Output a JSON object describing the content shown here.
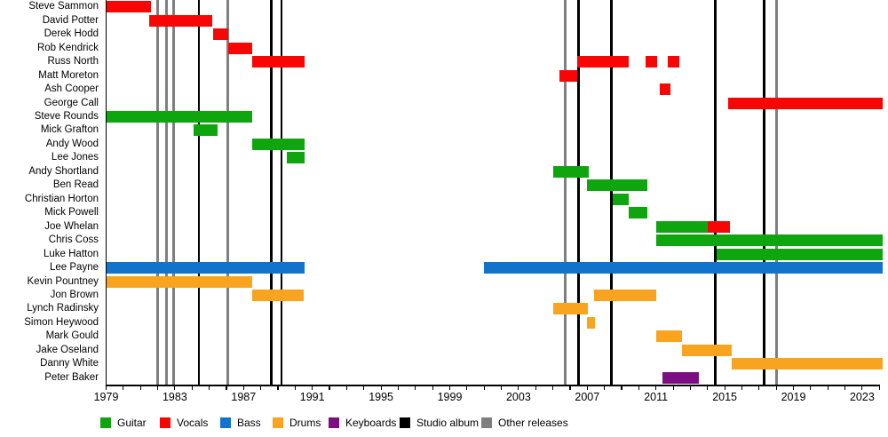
{
  "chart_data": {
    "type": "timeline",
    "description": "Band members timeline (Gantt-style), roles by color, vertical lines for releases",
    "x_axis": {
      "min": 1979,
      "max": 2024,
      "tick_step": 1,
      "labeled_years": [
        1979,
        1983,
        1987,
        1991,
        1995,
        1999,
        2003,
        2007,
        2011,
        2015,
        2019,
        2023
      ]
    },
    "colors": {
      "guitar": "#0fa50f",
      "vocals": "#f80606",
      "bass": "#1273cc",
      "drums": "#f9a41f",
      "keyboards": "#7b0f82",
      "studio_album": "#000000",
      "other_release": "#7f7f7f"
    },
    "legend": [
      {
        "key": "guitar",
        "label": "Guitar"
      },
      {
        "key": "vocals",
        "label": "Vocals"
      },
      {
        "key": "bass",
        "label": "Bass"
      },
      {
        "key": "drums",
        "label": "Drums"
      },
      {
        "key": "keyboards",
        "label": "Keyboards"
      },
      {
        "key": "studio_album",
        "label": "Studio album"
      },
      {
        "key": "other_release",
        "label": "Other releases"
      }
    ],
    "events": {
      "studio_album": [
        1984.4,
        1988.6,
        1989.2,
        2006.5,
        2008.4,
        2014.45,
        2017.3
      ],
      "other_release": [
        1982.0,
        1982.5,
        1982.9,
        1986.1,
        2005.7,
        2018.0
      ]
    },
    "rows": [
      {
        "name": "Steve Sammon",
        "segments": [
          {
            "role": "vocals",
            "start": 1979.0,
            "end": 1981.6
          }
        ]
      },
      {
        "name": "David Potter",
        "segments": [
          {
            "role": "vocals",
            "start": 1981.5,
            "end": 1985.2
          }
        ]
      },
      {
        "name": "Derek Hodd",
        "segments": [
          {
            "role": "vocals",
            "start": 1985.2,
            "end": 1986.1
          }
        ]
      },
      {
        "name": "Rob Kendrick",
        "segments": [
          {
            "role": "vocals",
            "start": 1986.1,
            "end": 1987.5
          }
        ]
      },
      {
        "name": "Russ North",
        "segments": [
          {
            "role": "vocals",
            "start": 1987.5,
            "end": 1990.55
          },
          {
            "role": "vocals",
            "start": 2006.4,
            "end": 2009.4
          },
          {
            "role": "vocals",
            "start": 2010.4,
            "end": 2011.05
          },
          {
            "role": "vocals",
            "start": 2011.7,
            "end": 2012.35
          }
        ]
      },
      {
        "name": "Matt Moreton",
        "segments": [
          {
            "role": "vocals",
            "start": 2005.4,
            "end": 2006.4
          }
        ]
      },
      {
        "name": "Ash Cooper",
        "segments": [
          {
            "role": "vocals",
            "start": 2011.2,
            "end": 2011.85
          }
        ]
      },
      {
        "name": "George Call",
        "segments": [
          {
            "role": "vocals",
            "start": 2015.2,
            "end": 2024.2
          }
        ]
      },
      {
        "name": "Steve Rounds",
        "segments": [
          {
            "role": "guitar",
            "start": 1979.0,
            "end": 1987.5
          }
        ]
      },
      {
        "name": "Mick Grafton",
        "segments": [
          {
            "role": "guitar",
            "start": 1984.1,
            "end": 1985.5
          }
        ]
      },
      {
        "name": "Andy Wood",
        "segments": [
          {
            "role": "guitar",
            "start": 1987.5,
            "end": 1990.55
          }
        ]
      },
      {
        "name": "Lee Jones",
        "segments": [
          {
            "role": "guitar",
            "start": 1989.5,
            "end": 1990.55
          }
        ]
      },
      {
        "name": "Andy Shortland",
        "segments": [
          {
            "role": "guitar",
            "start": 2005.0,
            "end": 2007.1
          }
        ]
      },
      {
        "name": "Ben Read",
        "segments": [
          {
            "role": "guitar",
            "start": 2007.0,
            "end": 2010.5
          }
        ]
      },
      {
        "name": "Christian Horton",
        "segments": [
          {
            "role": "guitar",
            "start": 2008.5,
            "end": 2009.4
          }
        ]
      },
      {
        "name": "Mick Powell",
        "segments": [
          {
            "role": "guitar",
            "start": 2009.4,
            "end": 2010.5
          }
        ]
      },
      {
        "name": "Joe Whelan",
        "segments": [
          {
            "role": "guitar",
            "start": 2011.0,
            "end": 2014.0
          },
          {
            "role": "vocals",
            "start": 2014.0,
            "end": 2015.3
          }
        ]
      },
      {
        "name": "Chris Coss",
        "segments": [
          {
            "role": "guitar",
            "start": 2011.0,
            "end": 2024.2
          }
        ]
      },
      {
        "name": "Luke Hatton",
        "segments": [
          {
            "role": "guitar",
            "start": 2014.55,
            "end": 2024.2
          }
        ]
      },
      {
        "name": "Lee Payne",
        "segments": [
          {
            "role": "bass",
            "start": 1979.0,
            "end": 1990.55
          },
          {
            "role": "bass",
            "start": 2001.0,
            "end": 2024.2
          }
        ]
      },
      {
        "name": "Kevin Pountney",
        "segments": [
          {
            "role": "drums",
            "start": 1979.0,
            "end": 1987.5
          }
        ]
      },
      {
        "name": "Jon Brown",
        "segments": [
          {
            "role": "drums",
            "start": 1987.5,
            "end": 1990.5
          },
          {
            "role": "drums",
            "start": 2007.4,
            "end": 2011.0
          }
        ]
      },
      {
        "name": "Lynch Radinsky",
        "segments": [
          {
            "role": "drums",
            "start": 2005.0,
            "end": 2007.05
          }
        ]
      },
      {
        "name": "Simon Heywood",
        "segments": [
          {
            "role": "drums",
            "start": 2007.0,
            "end": 2007.45
          }
        ]
      },
      {
        "name": "Mark Gould",
        "segments": [
          {
            "role": "drums",
            "start": 2011.0,
            "end": 2012.5
          }
        ]
      },
      {
        "name": "Jake Oseland",
        "segments": [
          {
            "role": "drums",
            "start": 2012.5,
            "end": 2015.4
          }
        ]
      },
      {
        "name": "Danny White",
        "segments": [
          {
            "role": "drums",
            "start": 2015.4,
            "end": 2024.2
          }
        ]
      },
      {
        "name": "Peter Baker",
        "segments": [
          {
            "role": "keyboards",
            "start": 2011.4,
            "end": 2013.5
          }
        ]
      }
    ]
  }
}
